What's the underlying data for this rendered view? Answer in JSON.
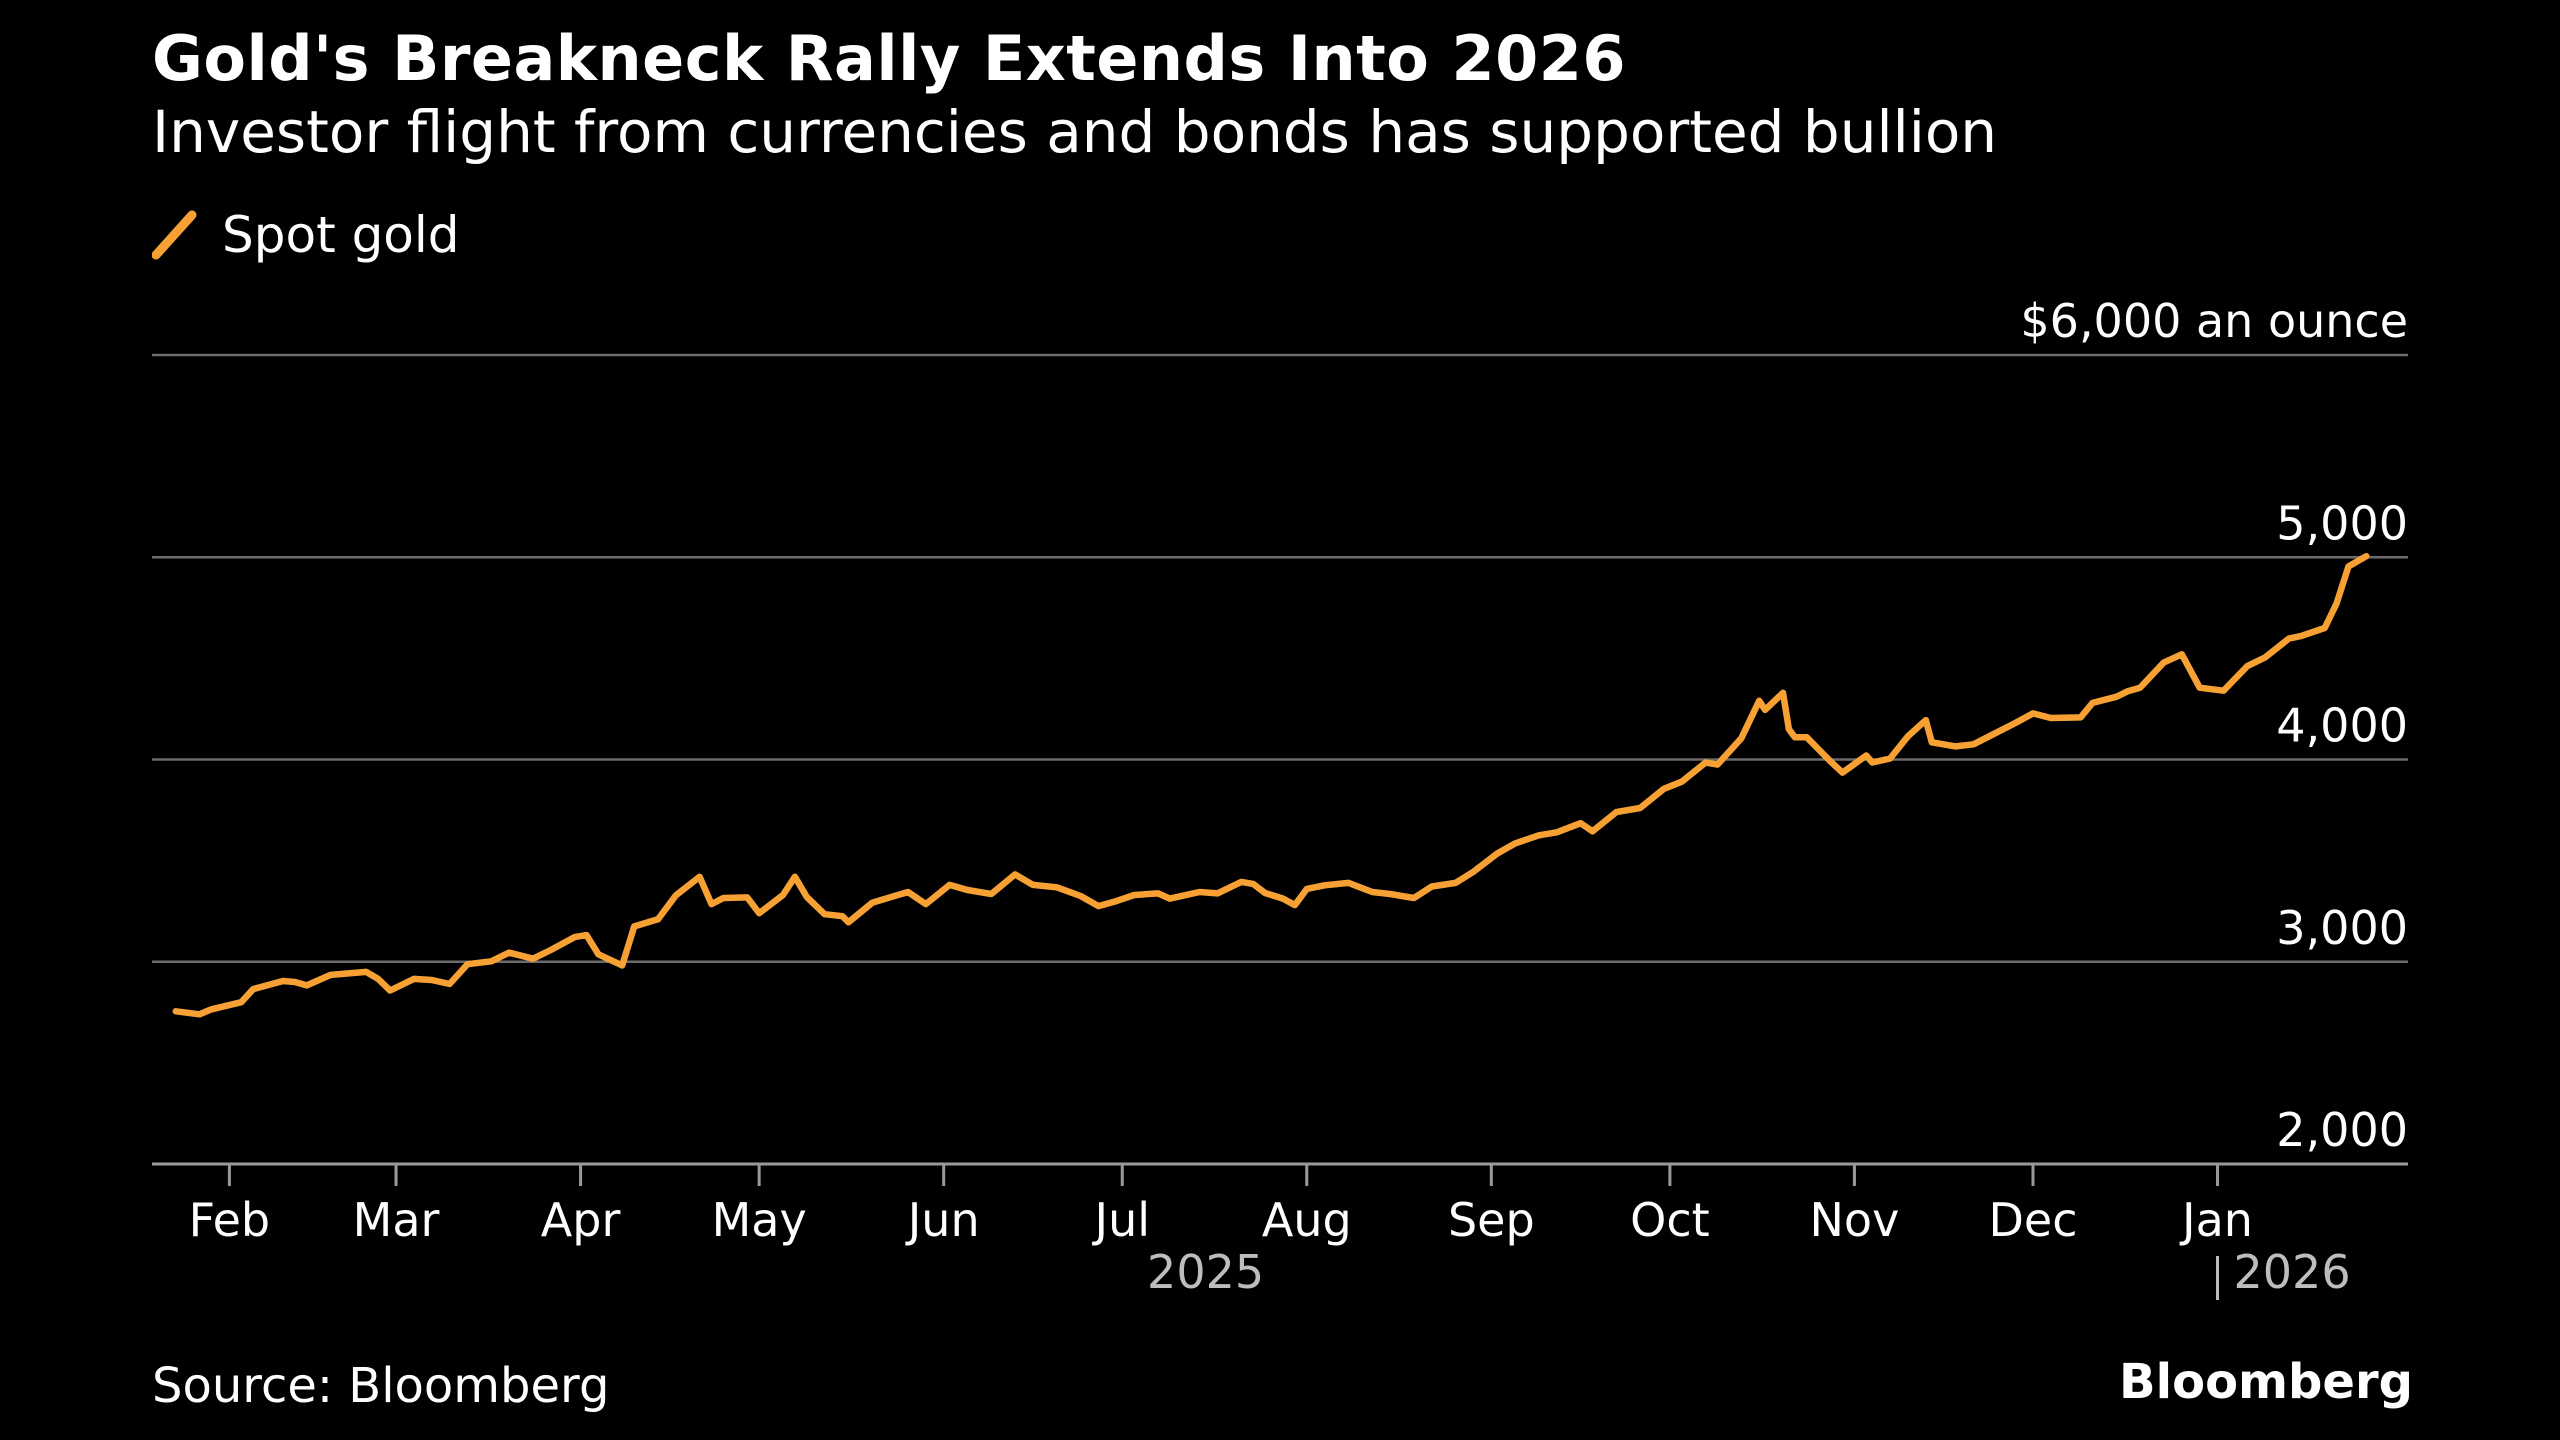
{
  "header": {
    "title": "Gold's Breakneck Rally Extends Into 2026",
    "subtitle": "Investor flight from currencies and bonds has supported bullion"
  },
  "legend": {
    "label": "Spot gold",
    "color": "#f7a134"
  },
  "footer": {
    "source": "Source: Bloomberg",
    "brand": "Bloomberg"
  },
  "chart_data": {
    "type": "line",
    "title": "Gold's Breakneck Rally Extends Into 2026",
    "subtitle": "Investor flight from currencies and bonds has supported bullion",
    "ylabel": "$6,000 an ounce",
    "ylim": [
      2000,
      6000
    ],
    "y_ticks": [
      {
        "value": 6000,
        "label": "$6,000 an ounce"
      },
      {
        "value": 5000,
        "label": "5,000"
      },
      {
        "value": 4000,
        "label": "4,000"
      },
      {
        "value": 3000,
        "label": "3,000"
      },
      {
        "value": 2000,
        "label": "2,000"
      }
    ],
    "xlim": [
      "2025-01-19",
      "2026-02-02"
    ],
    "x_ticks": [
      {
        "date": "2025-02-01",
        "label": "Feb"
      },
      {
        "date": "2025-03-01",
        "label": "Mar"
      },
      {
        "date": "2025-04-01",
        "label": "Apr"
      },
      {
        "date": "2025-05-01",
        "label": "May"
      },
      {
        "date": "2025-06-01",
        "label": "Jun"
      },
      {
        "date": "2025-07-01",
        "label": "Jul"
      },
      {
        "date": "2025-08-01",
        "label": "Aug"
      },
      {
        "date": "2025-09-01",
        "label": "Sep"
      },
      {
        "date": "2025-10-01",
        "label": "Oct"
      },
      {
        "date": "2025-11-01",
        "label": "Nov"
      },
      {
        "date": "2025-12-01",
        "label": "Dec"
      },
      {
        "date": "2026-01-01",
        "label": "Jan"
      }
    ],
    "year_labels": [
      {
        "date": "2025-07-15",
        "label": "2025"
      },
      {
        "date": "2026-01-01",
        "label": "2026",
        "divider": true
      }
    ],
    "grid": true,
    "legend_position": "top-left",
    "series": [
      {
        "name": "Spot gold",
        "color": "#f7a134",
        "points": [
          [
            "2025-01-23",
            2755
          ],
          [
            "2025-01-27",
            2740
          ],
          [
            "2025-01-29",
            2765
          ],
          [
            "2025-02-03",
            2800
          ],
          [
            "2025-02-05",
            2865
          ],
          [
            "2025-02-10",
            2905
          ],
          [
            "2025-02-12",
            2900
          ],
          [
            "2025-02-14",
            2883
          ],
          [
            "2025-02-18",
            2935
          ],
          [
            "2025-02-20",
            2940
          ],
          [
            "2025-02-24",
            2950
          ],
          [
            "2025-02-26",
            2915
          ],
          [
            "2025-02-28",
            2858
          ],
          [
            "2025-03-04",
            2915
          ],
          [
            "2025-03-07",
            2910
          ],
          [
            "2025-03-10",
            2890
          ],
          [
            "2025-03-13",
            2988
          ],
          [
            "2025-03-17",
            3002
          ],
          [
            "2025-03-20",
            3045
          ],
          [
            "2025-03-24",
            3015
          ],
          [
            "2025-03-27",
            3058
          ],
          [
            "2025-03-31",
            3122
          ],
          [
            "2025-04-02",
            3132
          ],
          [
            "2025-04-04",
            3037
          ],
          [
            "2025-04-08",
            2982
          ],
          [
            "2025-04-10",
            3175
          ],
          [
            "2025-04-14",
            3210
          ],
          [
            "2025-04-17",
            3328
          ],
          [
            "2025-04-21",
            3420
          ],
          [
            "2025-04-23",
            3285
          ],
          [
            "2025-04-25",
            3315
          ],
          [
            "2025-04-29",
            3318
          ],
          [
            "2025-05-01",
            3240
          ],
          [
            "2025-05-05",
            3330
          ],
          [
            "2025-05-07",
            3420
          ],
          [
            "2025-05-09",
            3320
          ],
          [
            "2025-05-12",
            3235
          ],
          [
            "2025-05-15",
            3225
          ],
          [
            "2025-05-16",
            3195
          ],
          [
            "2025-05-20",
            3292
          ],
          [
            "2025-05-22",
            3310
          ],
          [
            "2025-05-26",
            3345
          ],
          [
            "2025-05-29",
            3285
          ],
          [
            "2025-06-02",
            3380
          ],
          [
            "2025-06-05",
            3355
          ],
          [
            "2025-06-09",
            3335
          ],
          [
            "2025-06-13",
            3432
          ],
          [
            "2025-06-16",
            3380
          ],
          [
            "2025-06-20",
            3368
          ],
          [
            "2025-06-24",
            3325
          ],
          [
            "2025-06-27",
            3275
          ],
          [
            "2025-06-30",
            3300
          ],
          [
            "2025-07-03",
            3330
          ],
          [
            "2025-07-07",
            3338
          ],
          [
            "2025-07-09",
            3312
          ],
          [
            "2025-07-14",
            3345
          ],
          [
            "2025-07-17",
            3338
          ],
          [
            "2025-07-21",
            3395
          ],
          [
            "2025-07-23",
            3385
          ],
          [
            "2025-07-25",
            3340
          ],
          [
            "2025-07-28",
            3312
          ],
          [
            "2025-07-30",
            3280
          ],
          [
            "2025-08-01",
            3360
          ],
          [
            "2025-08-04",
            3378
          ],
          [
            "2025-08-08",
            3390
          ],
          [
            "2025-08-12",
            3345
          ],
          [
            "2025-08-15",
            3335
          ],
          [
            "2025-08-19",
            3315
          ],
          [
            "2025-08-22",
            3372
          ],
          [
            "2025-08-26",
            3390
          ],
          [
            "2025-08-29",
            3445
          ],
          [
            "2025-09-02",
            3535
          ],
          [
            "2025-09-05",
            3585
          ],
          [
            "2025-09-09",
            3625
          ],
          [
            "2025-09-12",
            3640
          ],
          [
            "2025-09-16",
            3685
          ],
          [
            "2025-09-18",
            3645
          ],
          [
            "2025-09-22",
            3740
          ],
          [
            "2025-09-26",
            3760
          ],
          [
            "2025-09-30",
            3855
          ],
          [
            "2025-10-03",
            3890
          ],
          [
            "2025-10-07",
            3985
          ],
          [
            "2025-10-09",
            3975
          ],
          [
            "2025-10-13",
            4105
          ],
          [
            "2025-10-16",
            4290
          ],
          [
            "2025-10-17",
            4245
          ],
          [
            "2025-10-20",
            4330
          ],
          [
            "2025-10-21",
            4150
          ],
          [
            "2025-10-22",
            4110
          ],
          [
            "2025-10-24",
            4110
          ],
          [
            "2025-10-28",
            3990
          ],
          [
            "2025-10-30",
            3935
          ],
          [
            "2025-11-03",
            4020
          ],
          [
            "2025-11-04",
            3985
          ],
          [
            "2025-11-07",
            4005
          ],
          [
            "2025-11-10",
            4115
          ],
          [
            "2025-11-13",
            4195
          ],
          [
            "2025-11-14",
            4085
          ],
          [
            "2025-11-18",
            4065
          ],
          [
            "2025-11-21",
            4075
          ],
          [
            "2025-11-25",
            4135
          ],
          [
            "2025-11-28",
            4180
          ],
          [
            "2025-12-01",
            4228
          ],
          [
            "2025-12-04",
            4205
          ],
          [
            "2025-12-09",
            4208
          ],
          [
            "2025-12-11",
            4280
          ],
          [
            "2025-12-15",
            4310
          ],
          [
            "2025-12-17",
            4338
          ],
          [
            "2025-12-19",
            4355
          ],
          [
            "2025-12-23",
            4480
          ],
          [
            "2025-12-26",
            4520
          ],
          [
            "2025-12-29",
            4355
          ],
          [
            "2026-01-02",
            4340
          ],
          [
            "2026-01-06",
            4462
          ],
          [
            "2026-01-09",
            4505
          ],
          [
            "2026-01-13",
            4598
          ],
          [
            "2026-01-15",
            4610
          ],
          [
            "2026-01-19",
            4650
          ],
          [
            "2026-01-21",
            4772
          ],
          [
            "2026-01-23",
            4955
          ],
          [
            "2026-01-26",
            5005
          ]
        ]
      }
    ]
  }
}
